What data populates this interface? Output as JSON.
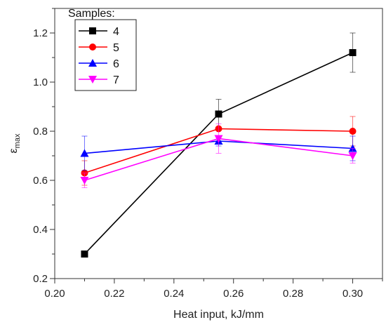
{
  "chart_data": {
    "type": "line",
    "xlabel": "Heat input, kJ/mm",
    "ylabel_main": "ε",
    "ylabel_sub": "max",
    "xlim": [
      0.2,
      0.31
    ],
    "ylim": [
      0.2,
      1.3
    ],
    "xticks": [
      0.2,
      0.22,
      0.24,
      0.26,
      0.28,
      0.3
    ],
    "xtick_labels": [
      "0.20",
      "0.22",
      "0.24",
      "0.26",
      "0.28",
      "0.30"
    ],
    "yticks": [
      0.2,
      0.4,
      0.6,
      0.8,
      1.0,
      1.2
    ],
    "ytick_labels": [
      "0.2",
      "0.4",
      "0.6",
      "0.8",
      "1.0",
      "1.2"
    ],
    "grid": false,
    "legend_title": "Samples:",
    "legend_position": "top-left",
    "x": [
      0.21,
      0.255,
      0.3
    ],
    "series": [
      {
        "name": "4",
        "color": "#000000",
        "marker": "square",
        "values": [
          0.3,
          0.87,
          1.12
        ],
        "errors": [
          0.0,
          0.06,
          0.08
        ]
      },
      {
        "name": "5",
        "color": "#ff0000",
        "marker": "circle",
        "values": [
          0.63,
          0.81,
          0.8
        ],
        "errors": [
          0.05,
          0.0,
          0.06
        ]
      },
      {
        "name": "6",
        "color": "#0000ff",
        "marker": "triangle-up",
        "values": [
          0.71,
          0.76,
          0.73
        ],
        "errors": [
          0.07,
          0.02,
          0.05
        ]
      },
      {
        "name": "7",
        "color": "#ff00ff",
        "marker": "triangle-down",
        "values": [
          0.6,
          0.77,
          0.7
        ],
        "errors": [
          0.03,
          0.06,
          0.03
        ]
      }
    ]
  }
}
